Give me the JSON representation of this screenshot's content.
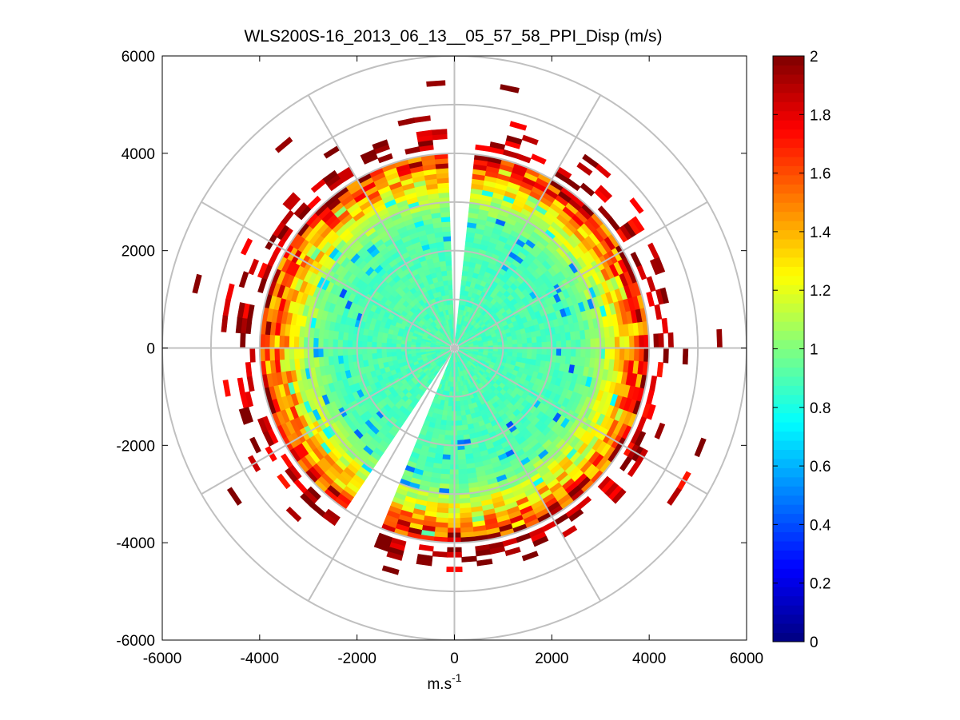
{
  "chart_data": {
    "type": "heatmap",
    "subtype": "polar-ppi",
    "title": "WLS200S-16_2013_06_13__05_57_58_PPI_Disp (m/s)",
    "xlabel": "m.s",
    "xlabel_superscript": "-1",
    "ylabel": "",
    "xlim": [
      -6000,
      6000
    ],
    "ylim": [
      -6000,
      6000
    ],
    "xticks": [
      -6000,
      -4000,
      -2000,
      0,
      2000,
      4000,
      6000
    ],
    "yticks": [
      -6000,
      -4000,
      -2000,
      0,
      2000,
      4000,
      6000
    ],
    "xtick_labels": [
      "-6000",
      "-4000",
      "-2000",
      "0",
      "2000",
      "4000",
      "6000"
    ],
    "ytick_labels": [
      "-6000",
      "-4000",
      "-2000",
      "0",
      "2000",
      "4000",
      "6000"
    ],
    "polar_grid": {
      "ring_radii": [
        1000,
        2000,
        3000,
        4000,
        5000,
        6000
      ],
      "spoke_angles_deg": [
        0,
        30,
        60,
        90,
        120,
        150,
        180,
        210,
        240,
        270,
        300,
        330
      ]
    },
    "colorbar": {
      "range": [
        0,
        2
      ],
      "ticks": [
        0,
        0.2,
        0.4,
        0.6,
        0.8,
        1,
        1.2,
        1.4,
        1.6,
        1.8,
        2
      ],
      "tick_labels": [
        "0",
        "0.2",
        "0.4",
        "0.6",
        "0.8",
        "1",
        "1.2",
        "1.4",
        "1.6",
        "1.8",
        "2"
      ],
      "colormap": "jet"
    },
    "scan": {
      "max_range_m": 4000,
      "gate_spacing_m": 100,
      "beam_width_deg": 4,
      "missing_sectors_deg": [
        [
          85,
          92
        ],
        [
          237,
          247
        ]
      ],
      "sparse_outer_gates_m": [
        4100,
        4200,
        4300,
        4400,
        4500,
        4700,
        5400
      ],
      "inner_value_m_s": 0.9,
      "edge_value_m_s": 2.0
    }
  },
  "colors": {
    "grid": "#c0c0c0",
    "axes": "#000000",
    "background": "#ffffff"
  }
}
